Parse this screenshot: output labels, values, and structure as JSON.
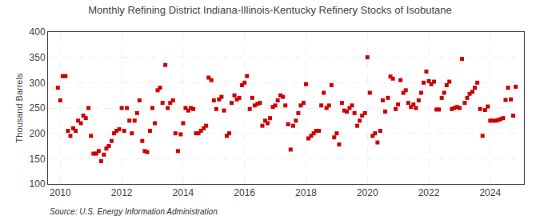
{
  "chart_data": {
    "type": "scatter",
    "title": "Monthly Refining District Indiana-Illinois-Kentucky Refinery Stocks of Isobutane",
    "ylabel": "Thousand Barrels",
    "annotations": [
      "Source: U.S. Energy Information Administration"
    ],
    "color": "#cc0000",
    "marker": "square",
    "grid": true,
    "xlim": [
      2009.6,
      2025.1
    ],
    "xticks": [
      2010,
      2012,
      2014,
      2016,
      2018,
      2020,
      2022,
      2024
    ],
    "ylim": [
      100,
      400
    ],
    "yticks": [
      100,
      150,
      200,
      250,
      300,
      350,
      400
    ],
    "x": [
      2009.92,
      2010.0,
      2010.08,
      2010.17,
      2010.25,
      2010.33,
      2010.42,
      2010.5,
      2010.58,
      2010.67,
      2010.75,
      2010.83,
      2010.92,
      2011.0,
      2011.08,
      2011.17,
      2011.25,
      2011.33,
      2011.42,
      2011.5,
      2011.58,
      2011.67,
      2011.75,
      2011.83,
      2011.92,
      2012.0,
      2012.08,
      2012.17,
      2012.25,
      2012.33,
      2012.42,
      2012.5,
      2012.58,
      2012.67,
      2012.75,
      2012.83,
      2012.92,
      2013.0,
      2013.08,
      2013.17,
      2013.25,
      2013.33,
      2013.42,
      2013.5,
      2013.58,
      2013.67,
      2013.75,
      2013.83,
      2013.92,
      2014.0,
      2014.08,
      2014.17,
      2014.25,
      2014.33,
      2014.42,
      2014.5,
      2014.58,
      2014.67,
      2014.75,
      2014.83,
      2014.92,
      2015.0,
      2015.08,
      2015.17,
      2015.25,
      2015.33,
      2015.42,
      2015.5,
      2015.58,
      2015.67,
      2015.75,
      2015.83,
      2015.92,
      2016.0,
      2016.08,
      2016.17,
      2016.25,
      2016.33,
      2016.42,
      2016.5,
      2016.58,
      2016.67,
      2016.75,
      2016.83,
      2016.92,
      2017.0,
      2017.08,
      2017.17,
      2017.25,
      2017.33,
      2017.42,
      2017.5,
      2017.58,
      2017.67,
      2017.75,
      2017.83,
      2017.92,
      2018.0,
      2018.08,
      2018.17,
      2018.25,
      2018.33,
      2018.42,
      2018.5,
      2018.58,
      2018.67,
      2018.75,
      2018.83,
      2018.92,
      2019.0,
      2019.08,
      2019.17,
      2019.25,
      2019.33,
      2019.42,
      2019.5,
      2019.58,
      2019.67,
      2019.75,
      2019.83,
      2019.92,
      2020.0,
      2020.08,
      2020.17,
      2020.25,
      2020.33,
      2020.42,
      2020.5,
      2020.58,
      2020.67,
      2020.75,
      2020.83,
      2020.92,
      2021.0,
      2021.08,
      2021.17,
      2021.25,
      2021.33,
      2021.42,
      2021.5,
      2021.58,
      2021.67,
      2021.75,
      2021.83,
      2021.92,
      2022.0,
      2022.08,
      2022.17,
      2022.25,
      2022.33,
      2022.42,
      2022.5,
      2022.58,
      2022.67,
      2022.75,
      2022.83,
      2022.92,
      2023.0,
      2023.08,
      2023.17,
      2023.25,
      2023.33,
      2023.42,
      2023.5,
      2023.58,
      2023.67,
      2023.75,
      2023.83,
      2023.92,
      2024.0,
      2024.08,
      2024.17,
      2024.25,
      2024.33,
      2024.42,
      2024.5,
      2024.58,
      2024.67,
      2024.75,
      2024.83
    ],
    "values": [
      290,
      265,
      313,
      313,
      205,
      195,
      210,
      205,
      225,
      220,
      235,
      230,
      250,
      195,
      160,
      160,
      165,
      145,
      158,
      170,
      175,
      185,
      200,
      205,
      208,
      250,
      205,
      250,
      225,
      200,
      225,
      240,
      265,
      185,
      165,
      163,
      205,
      250,
      220,
      285,
      290,
      260,
      335,
      250,
      260,
      265,
      200,
      165,
      198,
      220,
      250,
      245,
      250,
      248,
      200,
      200,
      205,
      210,
      215,
      310,
      305,
      265,
      248,
      267,
      272,
      245,
      195,
      200,
      260,
      275,
      267,
      270,
      295,
      300,
      313,
      248,
      270,
      255,
      258,
      260,
      215,
      225,
      220,
      230,
      252,
      255,
      265,
      275,
      272,
      255,
      218,
      168,
      215,
      225,
      240,
      255,
      260,
      297,
      190,
      195,
      200,
      205,
      205,
      255,
      280,
      250,
      255,
      295,
      192,
      200,
      178,
      260,
      245,
      243,
      250,
      255,
      240,
      215,
      225,
      235,
      240,
      350,
      280,
      195,
      200,
      182,
      205,
      265,
      243,
      270,
      312,
      308,
      248,
      257,
      305,
      280,
      285,
      260,
      252,
      257,
      250,
      265,
      280,
      300,
      322,
      303,
      297,
      302,
      247,
      247,
      270,
      280,
      295,
      302,
      248,
      250,
      252,
      250,
      347,
      260,
      270,
      278,
      282,
      290,
      300,
      248,
      195,
      246,
      253,
      225,
      225,
      225,
      226,
      228,
      230,
      266,
      290,
      267,
      235,
      292
    ]
  }
}
